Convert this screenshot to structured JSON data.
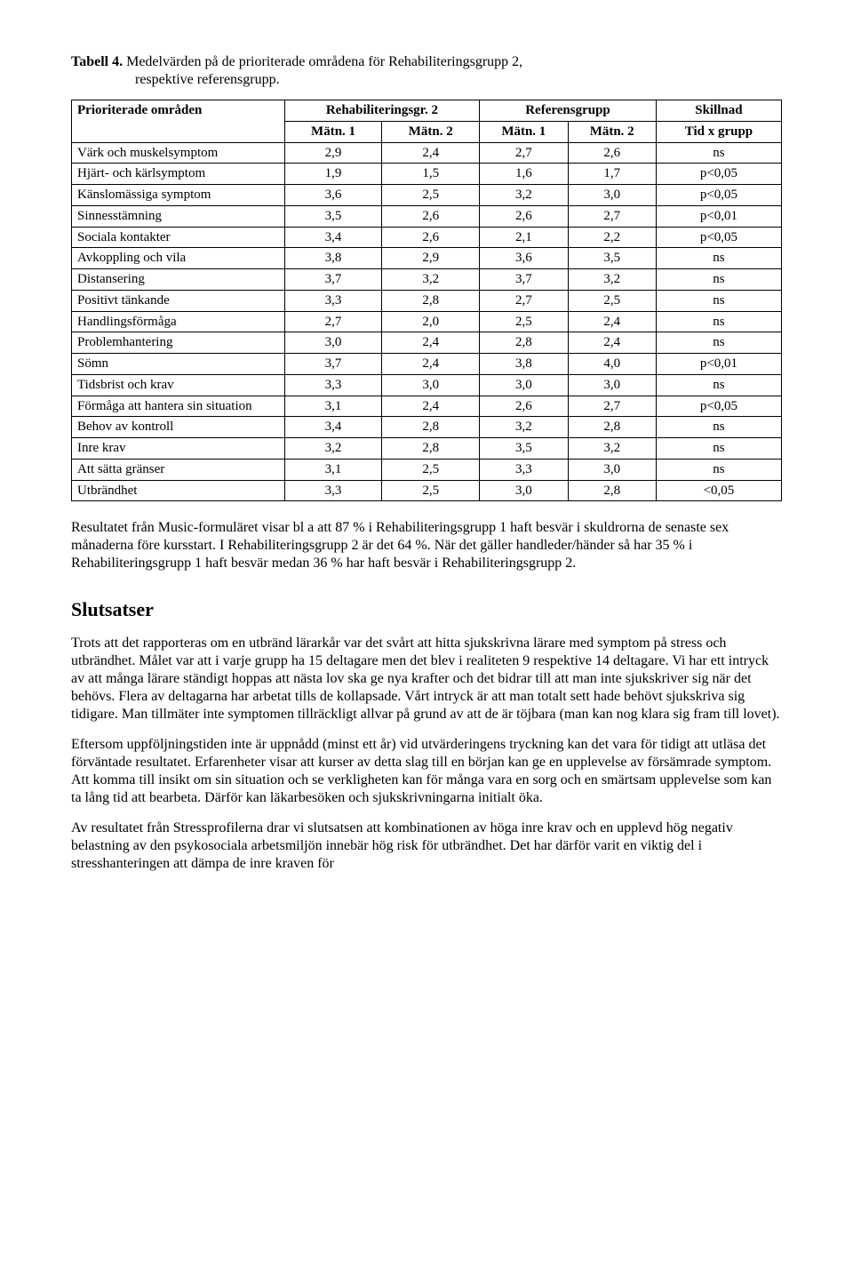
{
  "caption": {
    "label": "Tabell 4.",
    "rest1": " Medelvärden på de prioriterade områdena för Rehabiliteringsgrupp 2,",
    "line2": "respektive referensgrupp."
  },
  "table": {
    "header1": {
      "c0": "Prioriterade områden",
      "c1": "Rehabiliteringsgr. 2",
      "c2": "Referensgrupp",
      "c3": "Skillnad"
    },
    "header2": {
      "m1a": "Mätn. 1",
      "m2a": "Mätn. 2",
      "m1b": "Mätn. 1",
      "m2b": "Mätn. 2",
      "skill": "Tid x grupp"
    },
    "rows": [
      {
        "label": "Värk och muskelsymptom",
        "v1": "2,9",
        "v2": "2,4",
        "v3": "2,7",
        "v4": "2,6",
        "s": "ns"
      },
      {
        "label": "Hjärt- och kärlsymptom",
        "v1": "1,9",
        "v2": "1,5",
        "v3": "1,6",
        "v4": "1,7",
        "s": "p<0,05"
      },
      {
        "label": "Känslomässiga symptom",
        "v1": "3,6",
        "v2": "2,5",
        "v3": "3,2",
        "v4": "3,0",
        "s": "p<0,05"
      },
      {
        "label": "Sinnesstämning",
        "v1": "3,5",
        "v2": "2,6",
        "v3": "2,6",
        "v4": "2,7",
        "s": "p<0,01"
      },
      {
        "label": "Sociala kontakter",
        "v1": "3,4",
        "v2": "2,6",
        "v3": "2,1",
        "v4": "2,2",
        "s": "p<0,05"
      },
      {
        "label": "Avkoppling och vila",
        "v1": "3,8",
        "v2": "2,9",
        "v3": "3,6",
        "v4": "3,5",
        "s": "ns"
      },
      {
        "label": "Distansering",
        "v1": "3,7",
        "v2": "3,2",
        "v3": "3,7",
        "v4": "3,2",
        "s": "ns"
      },
      {
        "label": "Positivt tänkande",
        "v1": "3,3",
        "v2": "2,8",
        "v3": "2,7",
        "v4": "2,5",
        "s": "ns"
      },
      {
        "label": "Handlingsförmåga",
        "v1": "2,7",
        "v2": "2,0",
        "v3": "2,5",
        "v4": "2,4",
        "s": "ns"
      },
      {
        "label": "Problemhantering",
        "v1": "3,0",
        "v2": "2,4",
        "v3": "2,8",
        "v4": "2,4",
        "s": "ns"
      },
      {
        "label": "Sömn",
        "v1": "3,7",
        "v2": "2,4",
        "v3": "3,8",
        "v4": "4,0",
        "s": "p<0,01"
      },
      {
        "label": "Tidsbrist och krav",
        "v1": "3,3",
        "v2": "3,0",
        "v3": "3,0",
        "v4": "3,0",
        "s": "ns"
      },
      {
        "label": "Förmåga att hantera sin situation",
        "v1": "3,1",
        "v2": "2,4",
        "v3": "2,6",
        "v4": "2,7",
        "s": "p<0,05"
      },
      {
        "label": "Behov av kontroll",
        "v1": "3,4",
        "v2": "2,8",
        "v3": "3,2",
        "v4": "2,8",
        "s": "ns"
      },
      {
        "label": "Inre krav",
        "v1": "3,2",
        "v2": "2,8",
        "v3": "3,5",
        "v4": "3,2",
        "s": "ns"
      },
      {
        "label": "Att sätta gränser",
        "v1": "3,1",
        "v2": "2,5",
        "v3": "3,3",
        "v4": "3,0",
        "s": "ns"
      },
      {
        "label": "Utbrändhet",
        "v1": "3,3",
        "v2": "2,5",
        "v3": "3,0",
        "v4": "2,8",
        "s": "<0,05"
      }
    ]
  },
  "paragraphs": {
    "p1": "Resultatet från Music-formuläret visar bl a att 87 % i Rehabiliteringsgrupp 1 haft besvär i skuldrorna de senaste sex månaderna före kursstart. I Rehabiliteringsgrupp 2 är det 64 %. När det gäller handleder/händer så har 35 % i Rehabiliteringsgrupp 1 haft besvär medan 36 % har haft besvär i Rehabiliteringsgrupp 2.",
    "heading": "Slutsatser",
    "p2": "Trots att det rapporteras om en utbränd lärarkår var det svårt att hitta sjukskrivna lärare med symptom på stress och utbrändhet. Målet var att i varje grupp ha 15 deltagare men det blev i realiteten 9 respektive 14 deltagare. Vi har ett intryck av att många lärare ständigt hoppas att nästa lov ska ge nya krafter och det bidrar till att man inte sjukskriver sig när det behövs. Flera av deltagarna har arbetat tills de kollapsade. Vårt intryck är att man totalt sett hade behövt sjukskriva sig tidigare. Man tillmäter inte symptomen tillräckligt allvar på grund av att de är töjbara (man kan nog klara sig fram till lovet).",
    "p3": "Eftersom uppföljningstiden inte är uppnådd (minst ett år) vid utvärderingens tryckning kan det vara för tidigt att utläsa det förväntade resultatet. Erfarenheter visar att kurser av detta slag till en början kan ge en upplevelse av försämrade symptom. Att komma till insikt om sin situation och se verkligheten kan för många vara en sorg och en smärtsam upplevelse som kan ta lång tid att bearbeta. Därför kan läkarbesöken och sjukskrivningarna initialt öka.",
    "p4": "Av resultatet från Stressprofilerna drar vi slutsatsen att kombinationen av höga inre krav och en upplevd hög negativ belastning av den psykosociala arbetsmiljön innebär hög risk för utbrändhet. Det har därför varit en viktig del i stresshanteringen att dämpa de inre kraven för"
  }
}
